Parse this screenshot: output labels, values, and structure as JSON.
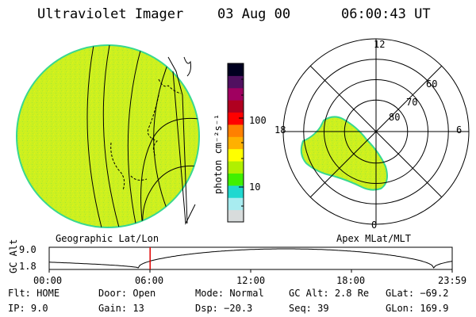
{
  "header": {
    "instrument": "Ultraviolet Imager",
    "date": "03 Aug 00",
    "time": "06:00:43 UT"
  },
  "colorbar": {
    "unit_label": "photon cm⁻²s⁻¹",
    "tick_labels": [
      "100",
      "10"
    ],
    "colors": [
      "#d8dcdc",
      "#a8ecf0",
      "#20d8d0",
      "#40f000",
      "#b0f000",
      "#ffff00",
      "#ffb000",
      "#ff8000",
      "#ff0000",
      "#b00020",
      "#a00060",
      "#501060",
      "#000020"
    ]
  },
  "geo_panel": {
    "label": "Geographic Lat/Lon",
    "fill_color": "#ccf020",
    "edge_color": "#38d890"
  },
  "polar_panel": {
    "label": "Apex MLat/MLT",
    "mlt_labels": [
      "12",
      "6",
      "0",
      "18"
    ],
    "lat_labels": [
      "60",
      "70",
      "80"
    ],
    "blob_color": "#ccf020"
  },
  "alt_plot": {
    "ylabel": "GC Alt",
    "y_ticks": [
      "9.0",
      "1.8"
    ],
    "x_ticks": [
      "00:00",
      "06:00",
      "12:00",
      "18:00",
      "23:59"
    ],
    "current_time_hours": 6.01,
    "marker_color": "#e00000"
  },
  "status": {
    "flt": {
      "label": "Flt:",
      "value": "HOME"
    },
    "ip": {
      "label": "IP:",
      "value": "9.0"
    },
    "door": {
      "label": "Door:",
      "value": "Open"
    },
    "gain": {
      "label": "Gain:",
      "value": "13"
    },
    "mode": {
      "label": "Mode:",
      "value": "Normal"
    },
    "dsp": {
      "label": "Dsp:",
      "value": "−20.3"
    },
    "gcalt": {
      "label": "GC Alt:",
      "value": "2.8 Re"
    },
    "seq": {
      "label": "Seq:",
      "value": "39"
    },
    "glat": {
      "label": "GLat:",
      "value": "−69.2"
    },
    "glon": {
      "label": "GLon:",
      "value": "169.9"
    }
  }
}
